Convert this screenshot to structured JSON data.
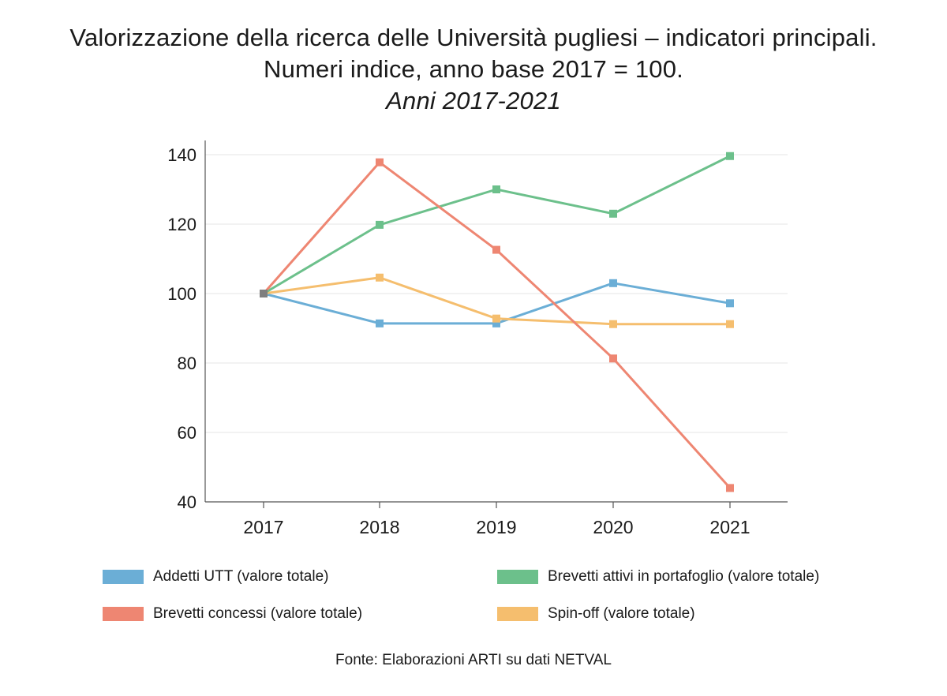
{
  "header": {
    "title_line1": "Valorizzazione della ricerca delle Università pugliesi – indicatori principali.",
    "title_line2": "Numeri indice, anno base 2017 = 100.",
    "subtitle": "Anni 2017-2021"
  },
  "chart_data": {
    "type": "line",
    "title": "Valorizzazione della ricerca delle Università pugliesi – indicatori principali. Numeri indice, anno base 2017 = 100.",
    "subtitle": "Anni 2017-2021",
    "x": [
      "2017",
      "2018",
      "2019",
      "2020",
      "2021"
    ],
    "ylim": [
      40,
      140
    ],
    "yticks": [
      40,
      60,
      80,
      100,
      120,
      140
    ],
    "grid": true,
    "legend_position": "bottom",
    "series": [
      {
        "name": "Addetti UTT (valore totale)",
        "color": "#6baed6",
        "values": [
          100,
          91.4,
          91.4,
          103,
          97.2
        ]
      },
      {
        "name": "Brevetti attivi in portafoglio (valore totale)",
        "color": "#6cc08b",
        "values": [
          100,
          119.8,
          130,
          123,
          139.6
        ]
      },
      {
        "name": "Brevetti concessi (valore totale)",
        "color": "#ee8672",
        "values": [
          100,
          137.8,
          112.6,
          81.3,
          44
        ]
      },
      {
        "name": "Spin-off (valore totale)",
        "color": "#f5be6e",
        "values": [
          100,
          104.6,
          92.8,
          91.2,
          91.2
        ]
      }
    ],
    "base_marker_color": "#7f7f7f"
  },
  "footer": {
    "source": "Fonte: Elaborazioni ARTI su dati NETVAL"
  }
}
